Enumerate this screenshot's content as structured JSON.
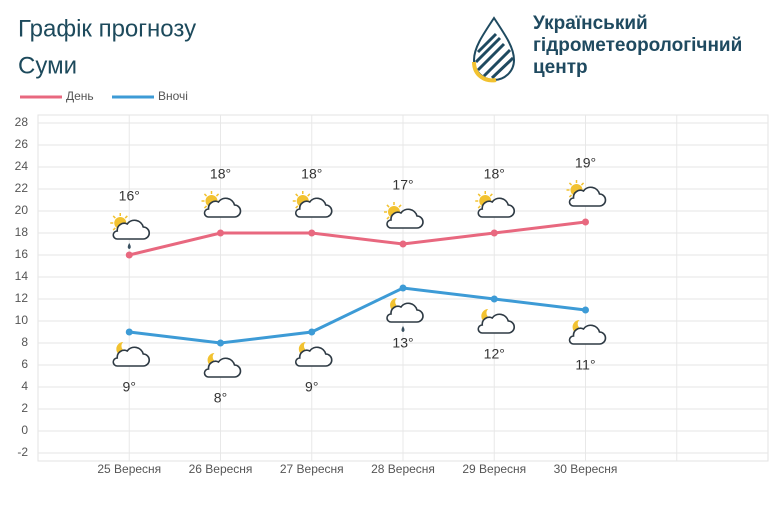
{
  "header": {
    "title": "Графік прогнозу",
    "city": "Суми",
    "logo": [
      "Український",
      "гідрометеорологічний",
      "центр"
    ]
  },
  "chart_data": {
    "type": "line",
    "categories": [
      "25 Вересня",
      "26 Вересня",
      "27 Вересня",
      "28 Вересня",
      "29 Вересня",
      "30 Вересня"
    ],
    "series": [
      {
        "name": "День",
        "color": "#e8687f",
        "values": [
          16,
          18,
          18,
          17,
          18,
          19
        ],
        "value_labels": [
          "16°",
          "18°",
          "18°",
          "17°",
          "18°",
          "19°"
        ]
      },
      {
        "name": "Вночі",
        "color": "#3d9bd6",
        "values": [
          9,
          8,
          9,
          13,
          12,
          11
        ],
        "value_labels": [
          "9°",
          "8°",
          "9°",
          "13°",
          "12°",
          "11°"
        ]
      }
    ],
    "ylim": [
      -2,
      28
    ],
    "yticks": [
      -2,
      0,
      2,
      4,
      6,
      8,
      10,
      12,
      14,
      16,
      18,
      20,
      22,
      24,
      26,
      28
    ],
    "grid": true
  }
}
